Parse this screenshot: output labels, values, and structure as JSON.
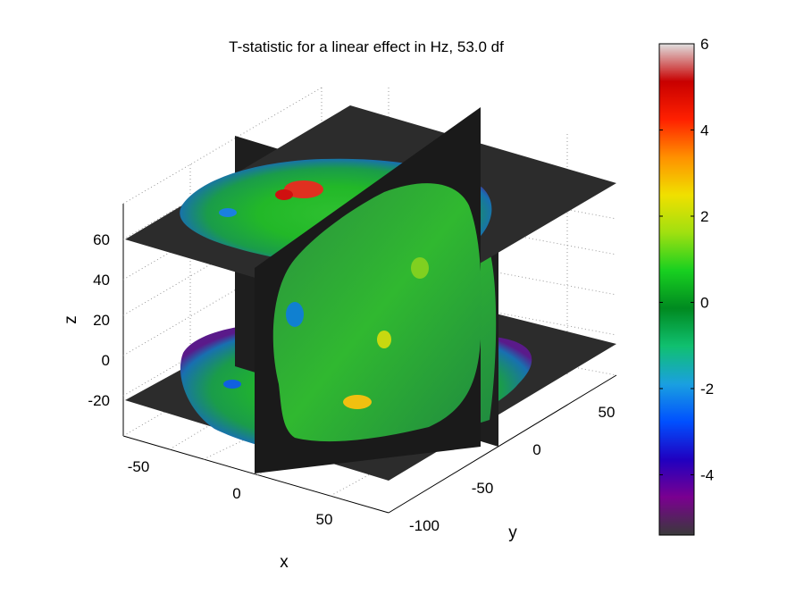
{
  "chart_data": {
    "type": "surface-3d",
    "title": "T-statistic for a linear effect in Hz, 53.0 df",
    "xlabel": "x",
    "ylabel": "y",
    "zlabel": "z",
    "x_ticks": [
      "-50",
      "0",
      "50"
    ],
    "y_ticks": [
      "-100",
      "-50",
      "0",
      "50"
    ],
    "z_ticks": [
      "60",
      "40",
      "20",
      "0",
      "-20"
    ],
    "grid": true,
    "slices": [
      {
        "name": "axial",
        "z": 60
      },
      {
        "name": "axial",
        "z": -20
      },
      {
        "name": "sagittal",
        "x": 0
      },
      {
        "name": "coronal",
        "y": 0
      }
    ],
    "colorbar": {
      "ticks": [
        "6",
        "4",
        "2",
        "0",
        "-2",
        "-4"
      ],
      "range": [
        -5.4,
        6
      ],
      "colors": [
        "#3a3a3a",
        "#7a0090",
        "#2000c0",
        "#0050ff",
        "#1aa0e0",
        "#10c070",
        "#008a20",
        "#18d020",
        "#a0e010",
        "#f0e000",
        "#ff9000",
        "#ff2000",
        "#c80000",
        "#e0e0e0"
      ]
    }
  }
}
